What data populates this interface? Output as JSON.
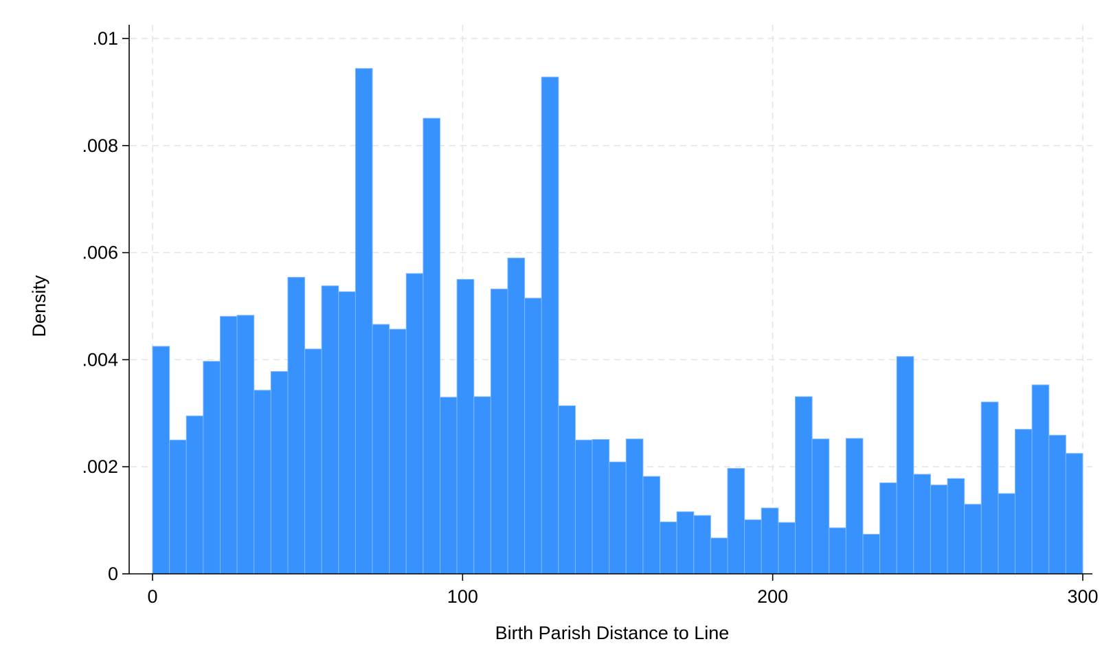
{
  "chart_data": {
    "type": "bar",
    "subtype": "histogram",
    "xlabel": "Birth Parish Distance to Line",
    "ylabel": "Density",
    "xlim": [
      0,
      300
    ],
    "ylim": [
      0,
      0.01
    ],
    "bin_width": 5.454545,
    "bin_start": 0,
    "x_ticks": [
      {
        "value": 0,
        "label": "0"
      },
      {
        "value": 100,
        "label": "100"
      },
      {
        "value": 200,
        "label": "200"
      },
      {
        "value": 300,
        "label": "300"
      }
    ],
    "y_ticks": [
      {
        "value": 0,
        "label": "0"
      },
      {
        "value": 0.002,
        "label": ".002"
      },
      {
        "value": 0.004,
        "label": ".004"
      },
      {
        "value": 0.006,
        "label": ".006"
      },
      {
        "value": 0.008,
        "label": ".008"
      },
      {
        "value": 0.01,
        "label": ".01"
      }
    ],
    "grid": true,
    "bar_color": "#3792fe",
    "bar_edge_color": "#7fb8ff",
    "values": [
      0.00425,
      0.0025,
      0.00295,
      0.00397,
      0.00481,
      0.00483,
      0.00343,
      0.00378,
      0.00554,
      0.0042,
      0.00538,
      0.00527,
      0.00944,
      0.00466,
      0.00457,
      0.00561,
      0.00851,
      0.0033,
      0.0055,
      0.00331,
      0.00532,
      0.0059,
      0.00515,
      0.00928,
      0.00314,
      0.0025,
      0.00251,
      0.00209,
      0.00252,
      0.00182,
      0.00097,
      0.00116,
      0.00109,
      0.00067,
      0.00197,
      0.00101,
      0.00123,
      0.00096,
      0.00331,
      0.00252,
      0.00086,
      0.00253,
      0.00074,
      0.0017,
      0.00406,
      0.00186,
      0.00166,
      0.00178,
      0.0013,
      0.00321,
      0.0015,
      0.0027,
      0.00353,
      0.00259,
      0.00225
    ]
  }
}
